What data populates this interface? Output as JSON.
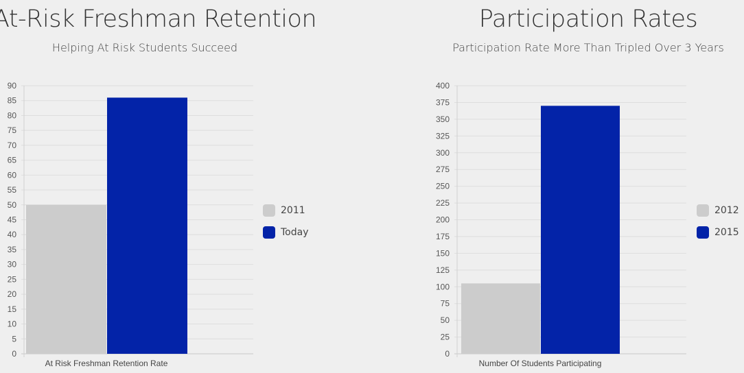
{
  "chart_data": [
    {
      "type": "bar",
      "title": "At-Risk Freshman Retention",
      "subtitle": "Helping At Risk Students Succeed",
      "categories": [
        "At Risk Freshman Retention Rate"
      ],
      "series": [
        {
          "name": "2011",
          "values": [
            50
          ],
          "color": "#cccccc"
        },
        {
          "name": "Today",
          "values": [
            86
          ],
          "color": "#0323a8"
        }
      ],
      "ylim": [
        0,
        90
      ],
      "ytick_step": 5,
      "grid": true,
      "legend": "right"
    },
    {
      "type": "bar",
      "title": "Participation Rates",
      "subtitle": "Participation Rate More Than Tripled Over 3 Years",
      "categories": [
        "Number Of Students Participating"
      ],
      "series": [
        {
          "name": "2012",
          "values": [
            105
          ],
          "color": "#cccccc"
        },
        {
          "name": "2015",
          "values": [
            370
          ],
          "color": "#0323a8"
        }
      ],
      "ylim": [
        0,
        400
      ],
      "ytick_step": 25,
      "grid": true,
      "legend": "right"
    }
  ]
}
